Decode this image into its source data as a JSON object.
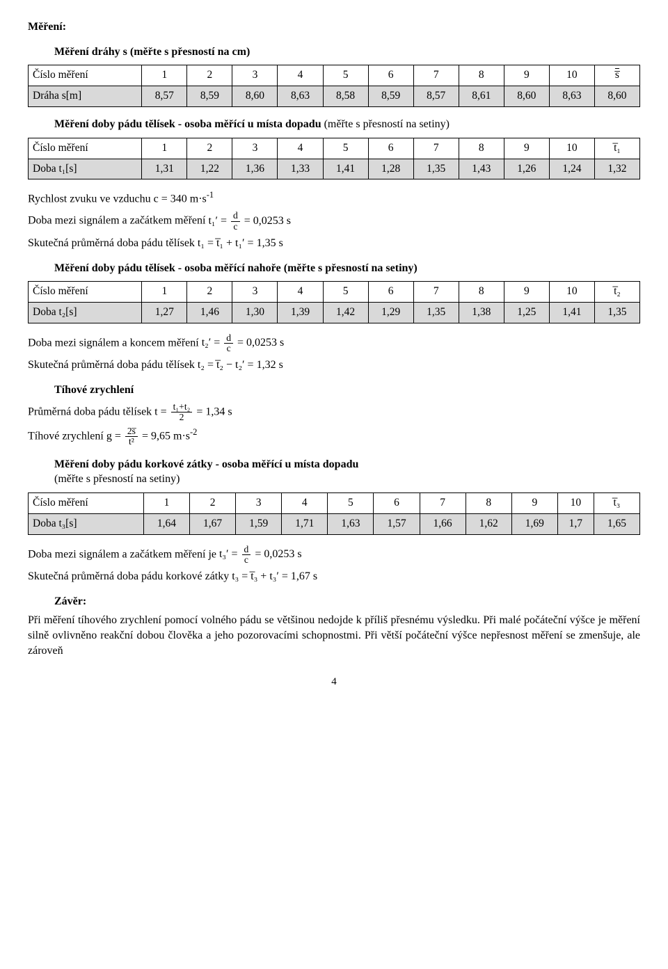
{
  "title": "Měření:",
  "sectionA": {
    "heading": "Měření dráhy s (měřte s přesností na cm)",
    "rowlabel_num": "Číslo měření",
    "rowlabel_val": "Dráha s[m]",
    "nums": [
      "1",
      "2",
      "3",
      "4",
      "5",
      "6",
      "7",
      "8",
      "9",
      "10"
    ],
    "last_header": "s̅",
    "vals": [
      "8,57",
      "8,59",
      "8,60",
      "8,63",
      "8,58",
      "8,59",
      "8,57",
      "8,61",
      "8,60",
      "8,63",
      "8,60"
    ]
  },
  "sectionB": {
    "heading": "Měření doby pádu tělísek - osoba měřící u místa dopadu",
    "subheading": "(měřte s přesností na setiny)",
    "rowlabel_num": "Číslo měření",
    "rowlabel_val": "Doba t₁[s]",
    "nums": [
      "1",
      "2",
      "3",
      "4",
      "5",
      "6",
      "7",
      "8",
      "9",
      "10"
    ],
    "last_header": "t̅₁",
    "vals": [
      "1,31",
      "1,22",
      "1,36",
      "1,33",
      "1,41",
      "1,28",
      "1,35",
      "1,43",
      "1,26",
      "1,24",
      "1,32"
    ]
  },
  "calc1": {
    "line1_a": "Rychlost zvuku ve vzduchu c = 340 m·s",
    "line1_sup": "-1",
    "line2_a": "Doba mezi signálem a začátkem měření ",
    "line2_lhs": "t₁′ =",
    "line2_frac_num": "d",
    "line2_frac_den": "c",
    "line2_rhs": " = 0,0253 s",
    "line3_a": "Skutečná průměrná doba pádu tělísek ",
    "line3_eq": "t₁ = t̅₁ + t₁′ = 1,35 s"
  },
  "sectionC": {
    "heading": "Měření doby pádu tělísek - osoba měřící nahoře (měřte s přesností na setiny)",
    "rowlabel_num": "Číslo měření",
    "rowlabel_val": "Doba t₂[s]",
    "nums": [
      "1",
      "2",
      "3",
      "4",
      "5",
      "6",
      "7",
      "8",
      "9",
      "10"
    ],
    "last_header": "t̅₂",
    "vals": [
      "1,27",
      "1,46",
      "1,30",
      "1,39",
      "1,42",
      "1,29",
      "1,35",
      "1,38",
      "1,25",
      "1,41",
      "1,35"
    ]
  },
  "calc2": {
    "line1_a": "Doba mezi signálem a koncem měření ",
    "line1_lhs": "t₂′ =",
    "line1_frac_num": "d",
    "line1_frac_den": "c",
    "line1_rhs": " = 0,0253 s",
    "line2_a": "Skutečná průměrná doba pádu tělísek ",
    "line2_eq": "t₂ = t̅₂ − t₂′ = 1,32 s"
  },
  "gravity": {
    "heading": "Tíhové zrychlení",
    "line1_a": "Průměrná doba pádu tělísek t =",
    "line1_frac_num": "t₁+t₂",
    "line1_frac_den": "2",
    "line1_rhs": " = 1,34 s",
    "line2_a": "Tíhové zrychlení g =",
    "line2_frac_num": "2s̅",
    "line2_frac_den": "t²",
    "line2_rhs": " = 9,65 m·s",
    "line2_sup": "-2"
  },
  "sectionD": {
    "heading": "Měření doby pádu korkové zátky - osoba měřící u místa dopadu",
    "subheading": "(měřte s přesností na setiny)",
    "rowlabel_num": "Číslo měření",
    "rowlabel_val": "Doba t₃[s]",
    "nums": [
      "1",
      "2",
      "3",
      "4",
      "5",
      "6",
      "7",
      "8",
      "9",
      "10"
    ],
    "last_header": "t̅₃",
    "vals": [
      "1,64",
      "1,67",
      "1,59",
      "1,71",
      "1,63",
      "1,57",
      "1,66",
      "1,62",
      "1,69",
      "1,7",
      "1,65"
    ]
  },
  "calc3": {
    "line1_a": "Doba mezi signálem a začátkem měření je ",
    "line1_lhs": "t₃′ =",
    "line1_frac_num": "d",
    "line1_frac_den": "c",
    "line1_rhs": " = 0,0253 s",
    "line2_a": "Skutečná průměrná doba pádu korkové zátky ",
    "line2_eq": "t₃ = t̅₃ + t₃′ = 1,67 s"
  },
  "conclusion": {
    "heading": "Závěr:",
    "text": "Při měření tíhového zrychlení pomocí volného pádu se většinou nedojde k příliš přesnému výsledku. Při malé počáteční výšce je měření silně ovlivněno reakční dobou člověka a jeho pozorovacími schopnostmi. Při větší počáteční výšce nepřesnost měření se zmenšuje, ale zároveň"
  },
  "pagenum": "4"
}
